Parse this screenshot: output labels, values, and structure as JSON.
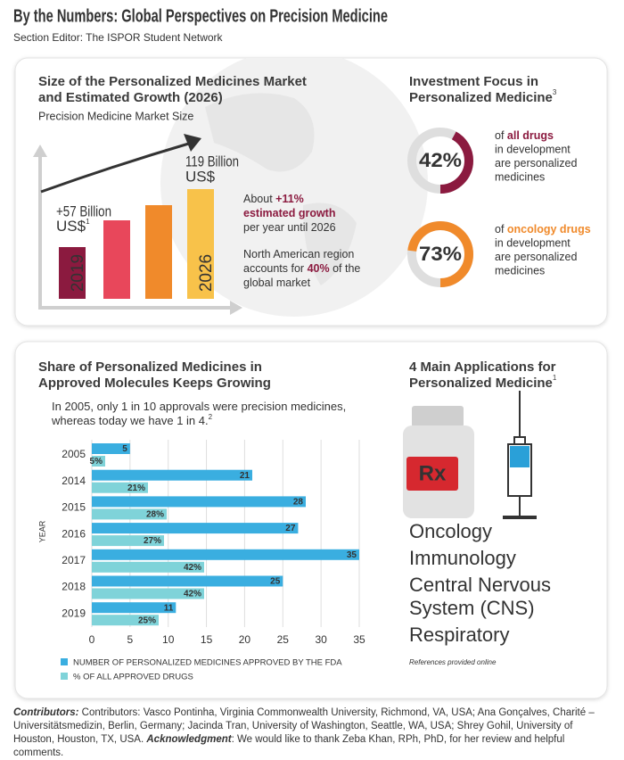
{
  "header": {
    "title": "By the Numbers: Global Perspectives on Precision Medicine",
    "subtitle": "Section Editor: The ISPOR Student Network"
  },
  "market": {
    "title": [
      "Size of the Personalized Medicines Market",
      "and Estimated Growth (2026)"
    ],
    "subtitle": "Precision Medicine Market Size",
    "start": {
      "year": "2019",
      "label": "+57 Billion",
      "unit": "US$",
      "note": "1"
    },
    "end": {
      "year": "2026",
      "label": "119 Billion",
      "unit": "US$"
    },
    "growth": [
      [
        {
          "t": "About "
        },
        {
          "t": "+11%",
          "b": true
        }
      ],
      [
        {
          "t": "estimated growth",
          "b": true
        }
      ],
      [
        {
          "t": "per year until 2026"
        }
      ]
    ],
    "region": [
      [
        {
          "t": "North American region"
        }
      ],
      [
        {
          "t": "accounts for "
        },
        {
          "t": "40%",
          "b": true
        },
        {
          "t": " of the"
        }
      ],
      [
        {
          "t": "global market"
        }
      ]
    ]
  },
  "investment": {
    "title": [
      "Investment Focus in",
      "Personalized Medicine"
    ],
    "note": "3",
    "items": [
      {
        "value": 42,
        "label": "42%",
        "color": "#8b1a3f",
        "lines": [
          [
            {
              "t": "of "
            },
            {
              "t": "all drugs",
              "b": true
            }
          ],
          [
            {
              "t": "in development"
            }
          ],
          [
            {
              "t": "are personalized"
            }
          ],
          [
            {
              "t": "medicines"
            }
          ]
        ]
      },
      {
        "value": 73,
        "label": "73%",
        "color": "#f08a2b",
        "lines": [
          [
            {
              "t": "of "
            },
            {
              "t": "oncology drugs",
              "b": true
            }
          ],
          [
            {
              "t": "in development"
            }
          ],
          [
            {
              "t": "are personalized"
            }
          ],
          [
            {
              "t": "medicines"
            }
          ]
        ]
      }
    ]
  },
  "chart_data": {
    "type": "bar",
    "orientation": "horizontal",
    "title": [
      "Share of Personalized Medicines in",
      "Approved Molecules Keeps Growing"
    ],
    "subtitle": [
      "In 2005, only 1 in 10 approvals were precision medicines,",
      "whereas today we have 1 in 4."
    ],
    "subtitle_note": "2",
    "y_label": "YEAR",
    "categories": [
      "2005",
      "2014",
      "2015",
      "2016",
      "2017",
      "2018",
      "2019"
    ],
    "series": [
      {
        "name": "NUMBER OF PERSONALIZED MEDICINES APPROVED BY THE FDA",
        "color": "#3aaee0",
        "values": [
          5,
          21,
          28,
          27,
          35,
          25,
          11
        ]
      },
      {
        "name": "% OF ALL APPROVED DRUGS",
        "color": "#7fd3d9",
        "values": [
          5,
          21,
          28,
          27,
          42,
          42,
          25
        ],
        "value_labels": [
          "5%",
          "21%",
          "28%",
          "27%",
          "42%",
          "42%",
          "25%"
        ],
        "axis": "y2"
      }
    ],
    "xlim": [
      0,
      35
    ],
    "xticks": [
      0,
      5,
      10,
      15,
      20,
      25,
      30,
      35
    ],
    "y2lim": [
      0,
      100
    ],
    "grid": true
  },
  "applications": {
    "title": [
      "4 Main Applications for",
      "Personalized Medicine"
    ],
    "note": "1",
    "icon_label": "Rx",
    "items": [
      {
        "lines": [
          "Oncology"
        ],
        "color": "#8b1a3f"
      },
      {
        "lines": [
          "Immunology"
        ],
        "color": "#f0932b"
      },
      {
        "lines": [
          "Central Nervous",
          "System (CNS)"
        ],
        "color": "#5ec5d0"
      },
      {
        "lines": [
          "Respiratory"
        ],
        "color": "#3aa7d6"
      }
    ],
    "reference": "References provided online"
  },
  "footer": {
    "contributors_label": "Contributors:",
    "contributors": " Contributors: Vasco Pontinha, Virginia Commonwealth University, Richmond, VA, USA; Ana Gonçalves, Charité – Universitätsmedizin, Berlin, Germany; Jacinda Tran, University of Washington, Seattle, WA, USA; Shrey Gohil, University of Houston, Houston, TX, USA. ",
    "ack_label": "Acknowledgment",
    "ack": ": We would like to thank Zeba Khan, RPh, PhD, for her review and helpful comments."
  }
}
